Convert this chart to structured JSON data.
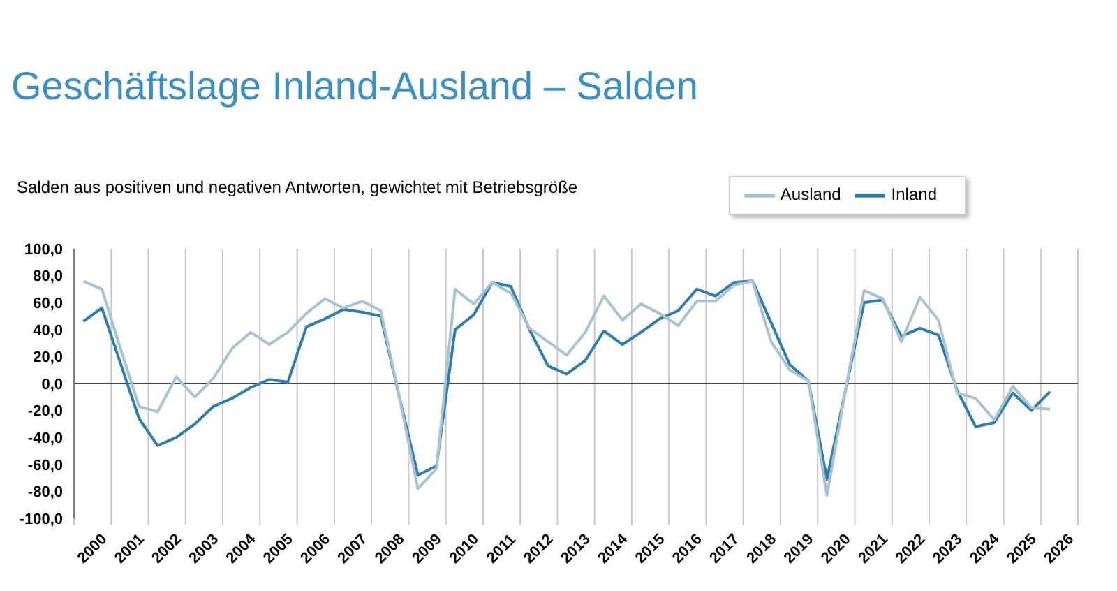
{
  "chart_data": {
    "type": "line",
    "title": "Geschäftslage Inland-Ausland – Salden",
    "subtitle": "Salden aus positiven und negativen Antworten, gewichtet mit Betriebsgröße",
    "x": [
      2000.25,
      2000.75,
      2001.25,
      2001.75,
      2002.25,
      2002.75,
      2003.25,
      2003.75,
      2004.25,
      2004.75,
      2005.25,
      2005.75,
      2006.25,
      2006.75,
      2007.25,
      2007.75,
      2008.25,
      2008.75,
      2009.25,
      2009.75,
      2010.25,
      2010.75,
      2011.25,
      2011.75,
      2012.25,
      2012.75,
      2013.25,
      2013.75,
      2014.25,
      2014.75,
      2015.25,
      2015.75,
      2016.25,
      2016.75,
      2017.25,
      2017.75,
      2018.25,
      2018.75,
      2019.25,
      2019.75,
      2020.25,
      2020.75,
      2021.25,
      2021.75,
      2022.25,
      2022.75,
      2023.25,
      2023.75,
      2024.25,
      2024.75,
      2025.25,
      2025.75,
      2026.25
    ],
    "series": [
      {
        "name": "Inland",
        "color": "#2e7fae",
        "values": [
          46,
          56,
          15,
          -26,
          -46,
          -40,
          -30,
          -17,
          -11,
          -3,
          3,
          1,
          42,
          48,
          55,
          53,
          50,
          -10,
          -68,
          -61,
          40,
          51,
          75,
          72,
          40,
          13,
          7,
          17,
          39,
          29,
          38,
          48,
          54,
          70,
          65,
          75,
          76,
          45,
          14,
          2,
          -71,
          -5,
          60,
          62,
          35,
          41,
          36,
          -5,
          -32,
          -29,
          -7,
          -20,
          -6
        ]
      },
      {
        "name": "Ausland",
        "color": "#a9c3d3",
        "values": [
          76,
          70,
          26,
          -17,
          -21,
          5,
          -10,
          4,
          26,
          38,
          29,
          38,
          52,
          63,
          56,
          61,
          54,
          -10,
          -78,
          -63,
          70,
          59,
          75,
          67,
          41,
          31,
          21,
          38,
          65,
          47,
          59,
          52,
          43,
          61,
          61,
          73,
          76,
          31,
          10,
          2,
          -83,
          -5,
          69,
          63,
          31,
          64,
          47,
          -7,
          -11,
          -27,
          -2,
          -18,
          -19
        ]
      }
    ],
    "xlim": [
      2000,
      2027
    ],
    "xticks": [
      {
        "value": 2000,
        "label": null
      },
      {
        "value": 2000.5,
        "label": "2000"
      },
      {
        "value": 2001,
        "label": null
      },
      {
        "value": 2001.5,
        "label": "2001"
      },
      {
        "value": 2002,
        "label": null
      },
      {
        "value": 2002.5,
        "label": "2002"
      },
      {
        "value": 2003,
        "label": null
      },
      {
        "value": 2003.5,
        "label": "2003"
      },
      {
        "value": 2004,
        "label": null
      },
      {
        "value": 2004.5,
        "label": "2004"
      },
      {
        "value": 2005,
        "label": null
      },
      {
        "value": 2005.5,
        "label": "2005"
      },
      {
        "value": 2006,
        "label": null
      },
      {
        "value": 2006.5,
        "label": "2006"
      },
      {
        "value": 2007,
        "label": null
      },
      {
        "value": 2007.5,
        "label": "2007"
      },
      {
        "value": 2008,
        "label": null
      },
      {
        "value": 2008.5,
        "label": "2008"
      },
      {
        "value": 2009,
        "label": null
      },
      {
        "value": 2009.5,
        "label": "2009"
      },
      {
        "value": 2010,
        "label": null
      },
      {
        "value": 2010.5,
        "label": "2010"
      },
      {
        "value": 2011,
        "label": null
      },
      {
        "value": 2011.5,
        "label": "2011"
      },
      {
        "value": 2012,
        "label": null
      },
      {
        "value": 2012.5,
        "label": "2012"
      },
      {
        "value": 2013,
        "label": null
      },
      {
        "value": 2013.5,
        "label": "2013"
      },
      {
        "value": 2014,
        "label": null
      },
      {
        "value": 2014.5,
        "label": "2014"
      },
      {
        "value": 2015,
        "label": null
      },
      {
        "value": 2015.5,
        "label": "2015"
      },
      {
        "value": 2016,
        "label": null
      },
      {
        "value": 2016.5,
        "label": "2016"
      },
      {
        "value": 2017,
        "label": null
      },
      {
        "value": 2017.5,
        "label": "2017"
      },
      {
        "value": 2018,
        "label": null
      },
      {
        "value": 2018.5,
        "label": "2018"
      },
      {
        "value": 2019,
        "label": null
      },
      {
        "value": 2019.5,
        "label": "2019"
      },
      {
        "value": 2020,
        "label": null
      },
      {
        "value": 2020.5,
        "label": "2020"
      },
      {
        "value": 2021,
        "label": null
      },
      {
        "value": 2021.5,
        "label": "2021"
      },
      {
        "value": 2022,
        "label": null
      },
      {
        "value": 2022.5,
        "label": "2022"
      },
      {
        "value": 2023,
        "label": null
      },
      {
        "value": 2023.5,
        "label": "2023"
      },
      {
        "value": 2024,
        "label": null
      },
      {
        "value": 2024.5,
        "label": "2024"
      },
      {
        "value": 2025,
        "label": null
      },
      {
        "value": 2025.5,
        "label": "2025"
      },
      {
        "value": 2026,
        "label": null
      },
      {
        "value": 2026.5,
        "label": "2026"
      },
      {
        "value": 2027,
        "label": null
      }
    ],
    "ylim": [
      -100,
      100
    ],
    "yticks": [
      {
        "value": -100,
        "label": "-100,0"
      },
      {
        "value": -80,
        "label": "-80,0"
      },
      {
        "value": -60,
        "label": "-60,0"
      },
      {
        "value": -40,
        "label": "-40,0"
      },
      {
        "value": -20,
        "label": "-20,0"
      },
      {
        "value": 0,
        "label": "0,0"
      },
      {
        "value": 20,
        "label": "20,0"
      },
      {
        "value": 40,
        "label": "40,0"
      },
      {
        "value": 60,
        "label": "60,0"
      },
      {
        "value": 80,
        "label": "80,0"
      },
      {
        "value": 100,
        "label": "100,0"
      }
    ],
    "ref_lines": [
      {
        "axis": "y",
        "value": 0,
        "color": "#404040"
      }
    ],
    "grid": "x",
    "legend": "top right",
    "marker": "none",
    "line_style": "solid"
  }
}
